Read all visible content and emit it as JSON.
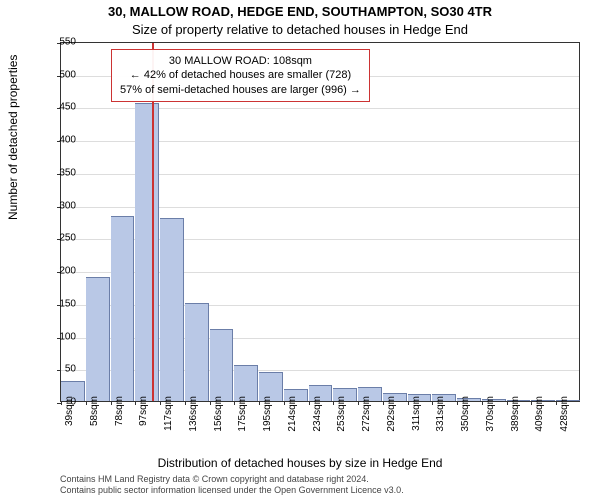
{
  "title_line1": "30, MALLOW ROAD, HEDGE END, SOUTHAMPTON, SO30 4TR",
  "title_line2": "Size of property relative to detached houses in Hedge End",
  "ylabel": "Number of detached properties",
  "xlabel": "Distribution of detached houses by size in Hedge End",
  "footer_line1": "Contains HM Land Registry data © Crown copyright and database right 2024.",
  "footer_line2": "Contains public sector information licensed under the Open Government Licence v3.0.",
  "infobox": {
    "line1": "30 MALLOW ROAD: 108sqm",
    "line2": "← 42% of detached houses are smaller (728)",
    "line3": "57% of semi-detached houses are larger (996) →"
  },
  "chart": {
    "type": "histogram",
    "ylim": [
      0,
      550
    ],
    "ytick_step": 50,
    "xtick_labels": [
      "39sqm",
      "58sqm",
      "78sqm",
      "97sqm",
      "117sqm",
      "136sqm",
      "156sqm",
      "175sqm",
      "195sqm",
      "214sqm",
      "234sqm",
      "253sqm",
      "272sqm",
      "292sqm",
      "311sqm",
      "331sqm",
      "350sqm",
      "370sqm",
      "389sqm",
      "409sqm",
      "428sqm"
    ],
    "values": [
      30,
      190,
      282,
      455,
      280,
      150,
      110,
      55,
      45,
      18,
      25,
      20,
      22,
      12,
      10,
      10,
      5,
      3,
      2,
      2,
      2
    ],
    "bar_color": "#b9c8e6",
    "bar_border": "#6b7ea8",
    "background": "#ffffff",
    "grid_color": "#dddddd",
    "marker_x_position": 0.175,
    "marker_color": "#cc3333",
    "plot_border": "#333333",
    "axis_font_size": 10,
    "label_font_size": 12,
    "title_font_size": 13,
    "infobox_font_size": 11
  }
}
